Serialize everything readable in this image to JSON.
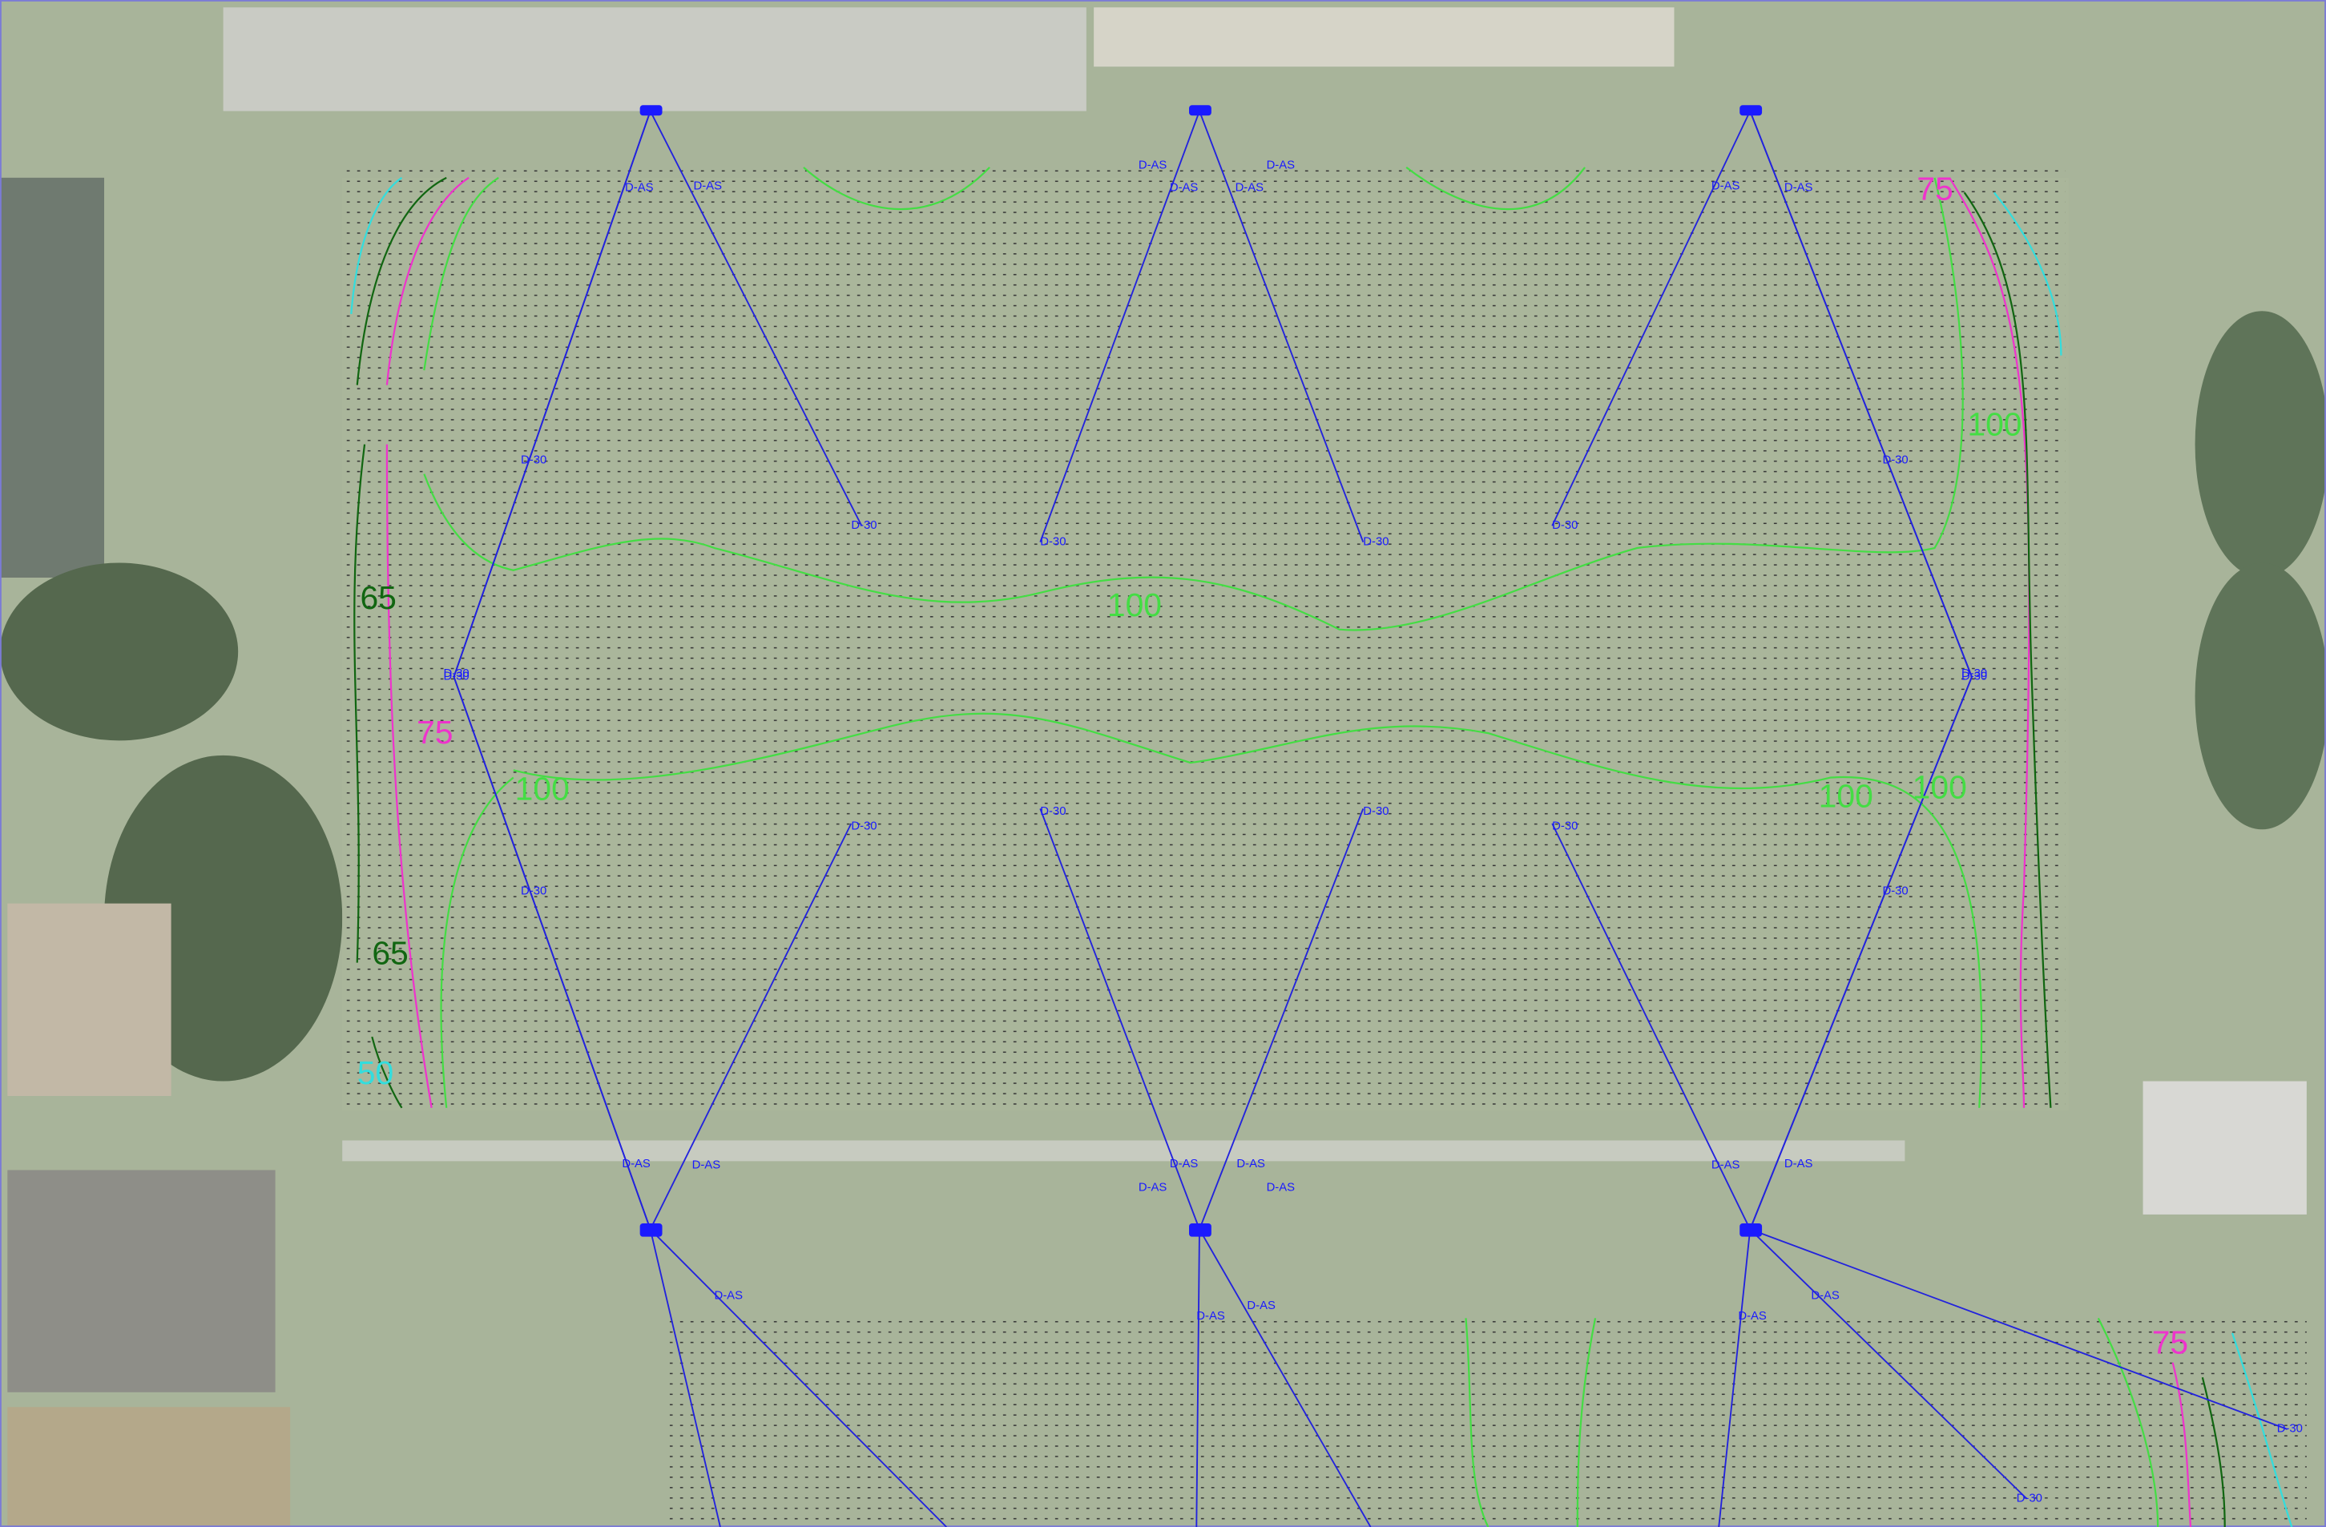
{
  "contour_labels": [
    "65",
    "75",
    "100",
    "65",
    "50",
    "100",
    "100",
    "100",
    "100",
    "75",
    "75"
  ],
  "aim_labels": [
    "D-AS",
    "D-AS",
    "D-30",
    "D-30",
    "D-30",
    "D-AS",
    "D-AS",
    "D-AS",
    "D-AS",
    "D-30",
    "D-30",
    "D-AS",
    "D-AS",
    "D-30",
    "D-30",
    "D-30",
    "D-AS",
    "D-AS",
    "D-30",
    "D-30",
    "D-30",
    "D-AS",
    "D-AS",
    "D-AS",
    "D-AS",
    "D-AS",
    "D-30",
    "D-30",
    "D-AS",
    "D-AS",
    "D-AS",
    "D-AS",
    "D-30",
    "D-30",
    "D-30",
    "D-AS",
    "D-AS",
    "D-30",
    "D-30"
  ]
}
